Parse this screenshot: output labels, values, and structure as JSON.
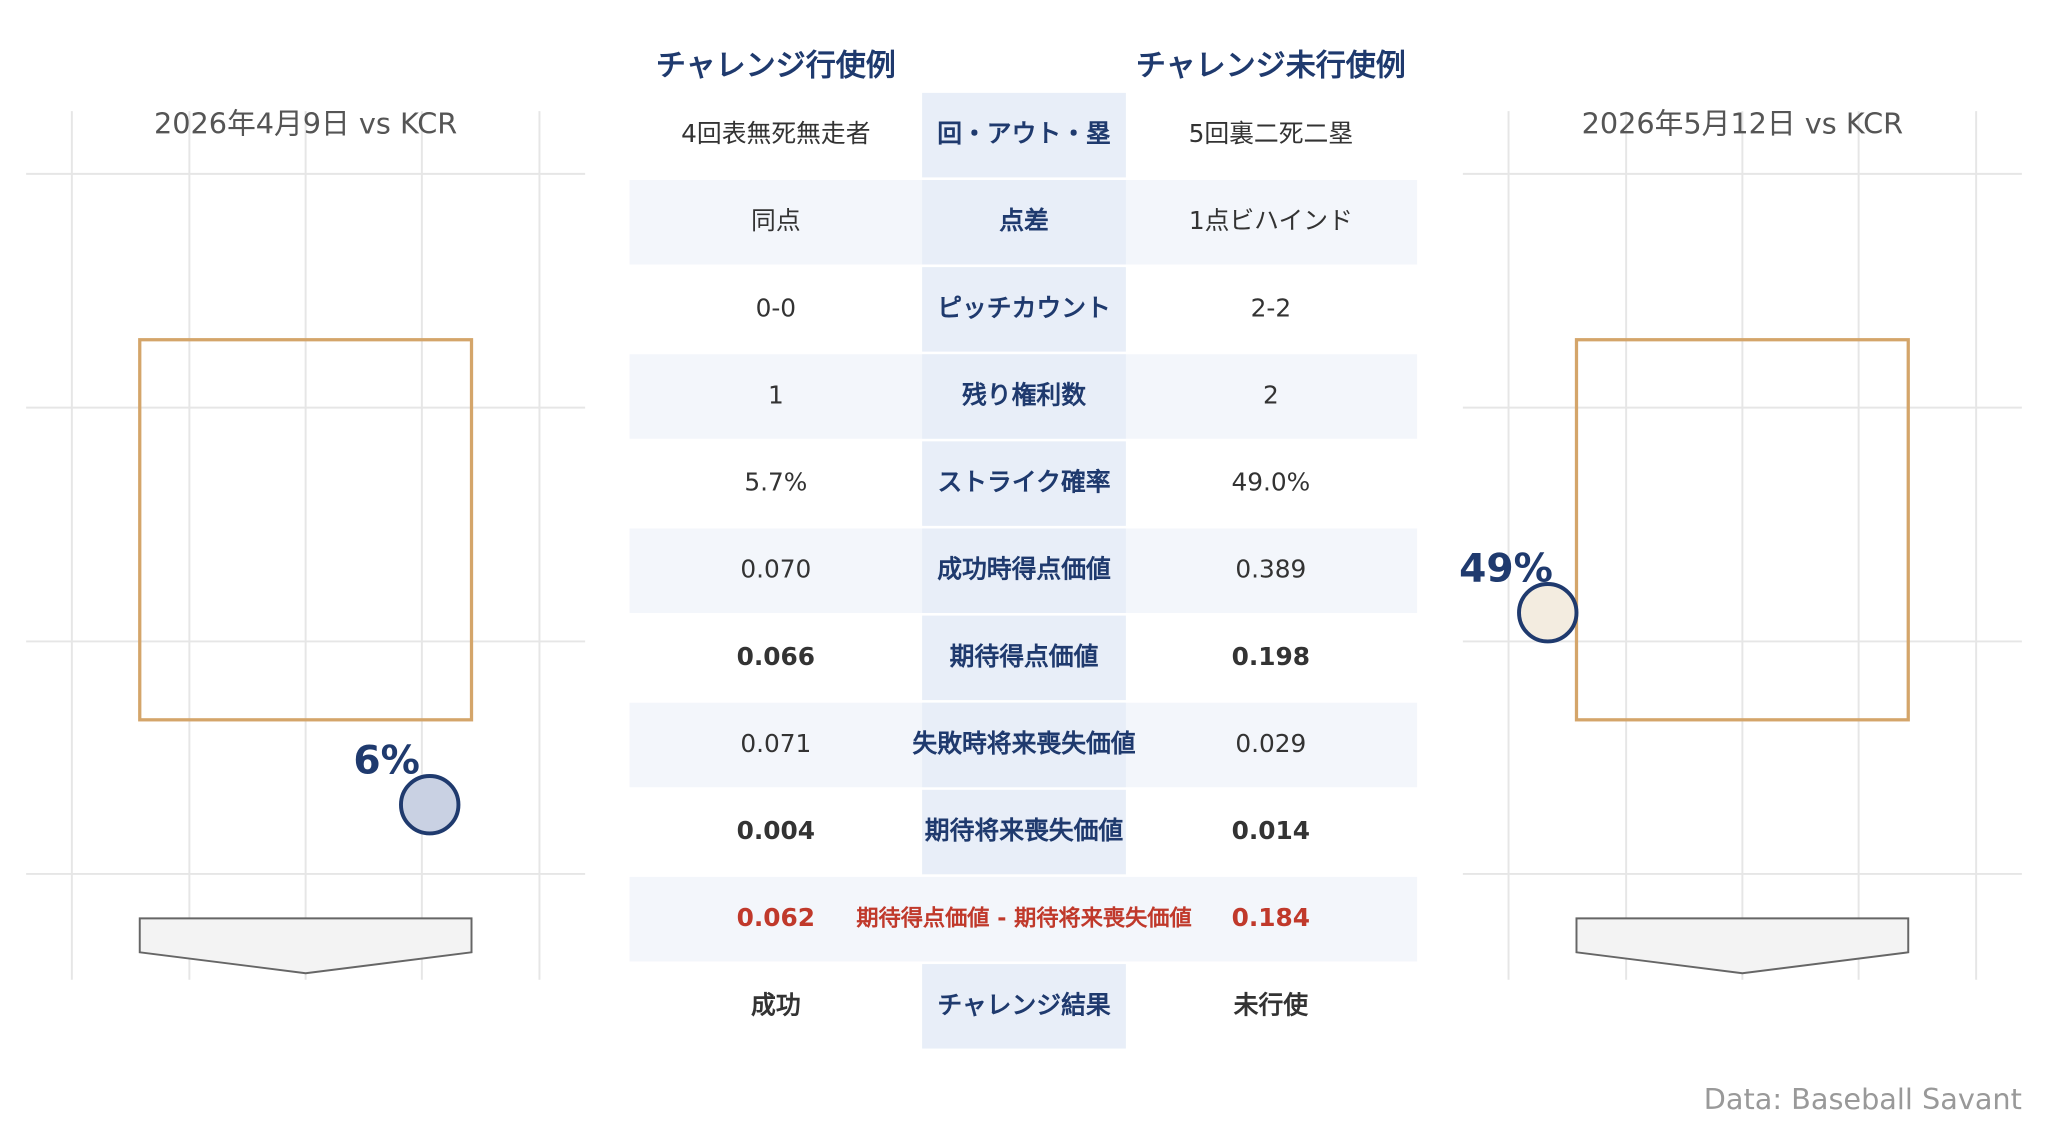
{
  "headers": {
    "left": "チャレンジ行使例",
    "right": "チャレンジ未行使例"
  },
  "panels": [
    {
      "title": "2026年4月9日 vs KCR",
      "label": "6%"
    },
    {
      "title": "2026年5月12日 vs KCR",
      "label": "49%"
    }
  ],
  "table": {
    "rows": [
      [
        "4回表無死無走者",
        "回・アウト・塁",
        "5回裏二死二塁"
      ],
      [
        "同点",
        "点差",
        "1点ビハインド"
      ],
      [
        "0-0",
        "ピッチカウント",
        "2-2"
      ],
      [
        "1",
        "残り権利数",
        "2"
      ],
      [
        "5.7%",
        "ストライク確率",
        "49.0%"
      ],
      [
        "0.070",
        "成功時得点価値",
        "0.389"
      ],
      [
        "0.066",
        "期待得点価値",
        "0.198"
      ],
      [
        "0.071",
        "失敗時将来喪失価値",
        "0.029"
      ],
      [
        "0.004",
        "期待将来喪失価値",
        "0.014"
      ],
      [
        "0.062",
        "期待得点価値 - 期待将来喪失価値",
        "0.184"
      ],
      [
        "成功",
        "チャレンジ結果",
        "未行使"
      ]
    ]
  },
  "source": "Data: Baseball Savant"
}
